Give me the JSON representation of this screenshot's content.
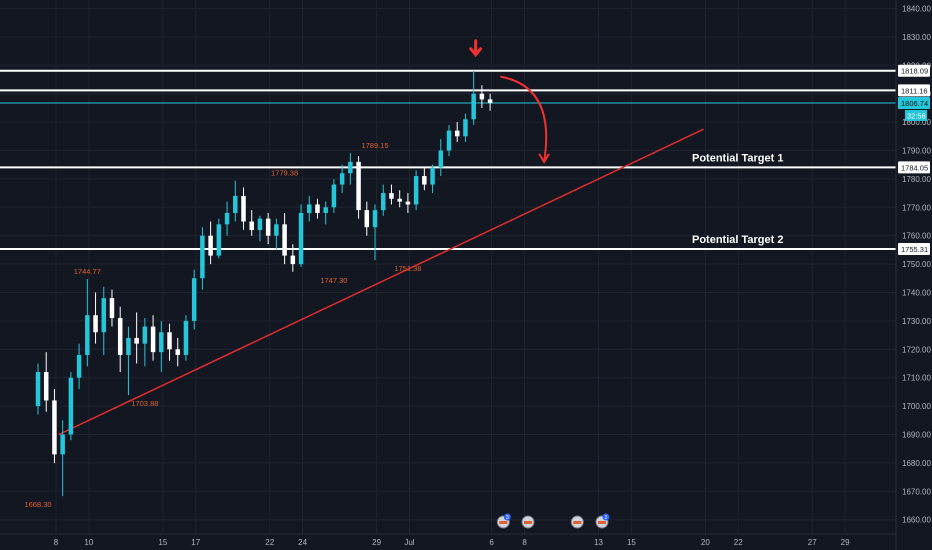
{
  "chart_data": {
    "type": "candlestick",
    "price_axis": {
      "ylim": [
        1657,
        1845
      ],
      "ticks": [
        1660,
        1670,
        1680,
        1690,
        1700,
        1710,
        1720,
        1730,
        1740,
        1750,
        1760,
        1770,
        1780,
        1790,
        1800,
        1810,
        1820,
        1830,
        1840
      ],
      "tick_labels": [
        "1660.00",
        "1670.00",
        "1680.00",
        "1690.00",
        "1700.00",
        "1710.00",
        "1720.00",
        "1730.00",
        "1740.00",
        "1750.00",
        "1760.00",
        "1770.00",
        "1780.00",
        "1790.00",
        "1800.00",
        "1810.00",
        "1820.00",
        "1830.00",
        "1840.00"
      ]
    },
    "time_axis": {
      "labels": [
        "8",
        "10",
        "15",
        "17",
        "22",
        "24",
        "29",
        "Jul",
        "6",
        "8",
        "13",
        "15",
        "20",
        "22",
        "27",
        "29"
      ],
      "label_index": [
        0,
        4,
        13,
        17,
        26,
        30,
        39,
        43,
        53,
        57,
        66,
        70,
        79,
        83,
        92,
        96
      ],
      "xlim": [
        0,
        97
      ]
    },
    "grid": "on",
    "levels": [
      {
        "value": 1818.09,
        "label": "1818.09",
        "style": "white"
      },
      {
        "value": 1811.16,
        "label": "1811.16",
        "style": "white"
      },
      {
        "value": 1806.74,
        "label": "1806.74",
        "style": "current",
        "countdown": "32:56"
      },
      {
        "value": 1784.05,
        "label": "1784.05",
        "style": "white"
      },
      {
        "value": 1755.31,
        "label": "1755.31",
        "style": "white"
      }
    ],
    "targets": [
      {
        "text": "Potential Target 1",
        "level": 1784.05
      },
      {
        "text": "Potential Target 2",
        "level": 1755.31
      }
    ],
    "swing_labels": [
      {
        "text": "1668.30",
        "bar": 0,
        "price": 1668.3,
        "pos": "below"
      },
      {
        "text": "1744.77",
        "bar": 6,
        "price": 1744.77,
        "pos": "above"
      },
      {
        "text": "1703.88",
        "bar": 13,
        "price": 1703.88,
        "pos": "below"
      },
      {
        "text": "1779.38",
        "bar": 30,
        "price": 1779.38,
        "pos": "above"
      },
      {
        "text": "1747.30",
        "bar": 36,
        "price": 1747.3,
        "pos": "below"
      },
      {
        "text": "1789.15",
        "bar": 41,
        "price": 1789.15,
        "pos": "above"
      },
      {
        "text": "1751.38",
        "bar": 45,
        "price": 1751.38,
        "pos": "below"
      }
    ],
    "trendline": {
      "from": {
        "x": 4,
        "price": 1690
      },
      "to": {
        "x": 75,
        "price": 1797.5
      }
    },
    "candles": [
      [
        1700,
        1715,
        1697,
        1712
      ],
      [
        1712,
        1719,
        1698,
        1702
      ],
      [
        1702,
        1706,
        1680,
        1683
      ],
      [
        1683,
        1695,
        1668.3,
        1690
      ],
      [
        1690,
        1712,
        1688,
        1710
      ],
      [
        1710,
        1722,
        1706,
        1718
      ],
      [
        1718,
        1744.77,
        1714,
        1732
      ],
      [
        1732,
        1740,
        1722,
        1726
      ],
      [
        1726,
        1742,
        1718,
        1738
      ],
      [
        1738,
        1741,
        1728,
        1731
      ],
      [
        1731,
        1735,
        1712,
        1718
      ],
      [
        1718,
        1728,
        1703.88,
        1724
      ],
      [
        1724,
        1733,
        1715,
        1722
      ],
      [
        1722,
        1731,
        1714,
        1728
      ],
      [
        1728,
        1732,
        1716,
        1719
      ],
      [
        1719,
        1730,
        1712,
        1726
      ],
      [
        1726,
        1729,
        1716,
        1720
      ],
      [
        1720,
        1724,
        1714,
        1718
      ],
      [
        1718,
        1732,
        1716,
        1730
      ],
      [
        1730,
        1748,
        1727,
        1745
      ],
      [
        1745,
        1763,
        1741,
        1760
      ],
      [
        1760,
        1765,
        1750,
        1753
      ],
      [
        1753,
        1766,
        1752,
        1764
      ],
      [
        1764,
        1772,
        1760,
        1768
      ],
      [
        1768,
        1779.38,
        1765,
        1774
      ],
      [
        1774,
        1777,
        1762,
        1765
      ],
      [
        1765,
        1769,
        1760,
        1762
      ],
      [
        1762,
        1767,
        1758,
        1766
      ],
      [
        1766,
        1768,
        1757,
        1760
      ],
      [
        1760,
        1766,
        1755,
        1764
      ],
      [
        1764,
        1768,
        1750,
        1753
      ],
      [
        1753,
        1757,
        1747.3,
        1750
      ],
      [
        1750,
        1771,
        1749,
        1768
      ],
      [
        1768,
        1774,
        1765,
        1771
      ],
      [
        1771,
        1773,
        1766,
        1768
      ],
      [
        1768,
        1772,
        1764,
        1770
      ],
      [
        1770,
        1780,
        1768,
        1778
      ],
      [
        1778,
        1785,
        1775,
        1782
      ],
      [
        1782,
        1789.15,
        1778,
        1786
      ],
      [
        1786,
        1788,
        1766,
        1769
      ],
      [
        1769,
        1772,
        1760,
        1763
      ],
      [
        1763,
        1771,
        1751.38,
        1769
      ],
      [
        1769,
        1778,
        1767,
        1775
      ],
      [
        1775,
        1778,
        1771,
        1773
      ],
      [
        1773,
        1776,
        1770,
        1772
      ],
      [
        1772,
        1775,
        1768,
        1771
      ],
      [
        1771,
        1783,
        1769,
        1781
      ],
      [
        1781,
        1784,
        1776,
        1778
      ],
      [
        1778,
        1785,
        1775,
        1784
      ],
      [
        1784,
        1794,
        1781,
        1790
      ],
      [
        1790,
        1799,
        1788,
        1797
      ],
      [
        1797,
        1800,
        1793,
        1795
      ],
      [
        1795,
        1803,
        1793,
        1801
      ],
      [
        1801,
        1818.09,
        1799,
        1810
      ],
      [
        1810,
        1813,
        1805,
        1808
      ],
      [
        1808,
        1810,
        1804,
        1806.74
      ]
    ],
    "markers": {
      "arrow_bar": 53,
      "curved_arrow": {
        "from": {
          "x": 56,
          "price": 1816
        },
        "to": {
          "x": 64,
          "price": 1786
        }
      }
    },
    "events": [
      {
        "bar": 56,
        "label": "3"
      },
      {
        "bar": 59,
        "label": ""
      },
      {
        "bar": 65,
        "label": ""
      },
      {
        "bar": 68,
        "label": "2"
      }
    ],
    "colors": {
      "background": "#131722",
      "grid": "#1f2330",
      "up": "#26c6da",
      "down": "#ffffff",
      "level_line": "#ffffff",
      "current_line": "#26c6da",
      "trendline": "#e02d2d",
      "arrow": "#f23030",
      "swing_label": "#e0612f",
      "axis_text": "#b2b5be"
    }
  }
}
